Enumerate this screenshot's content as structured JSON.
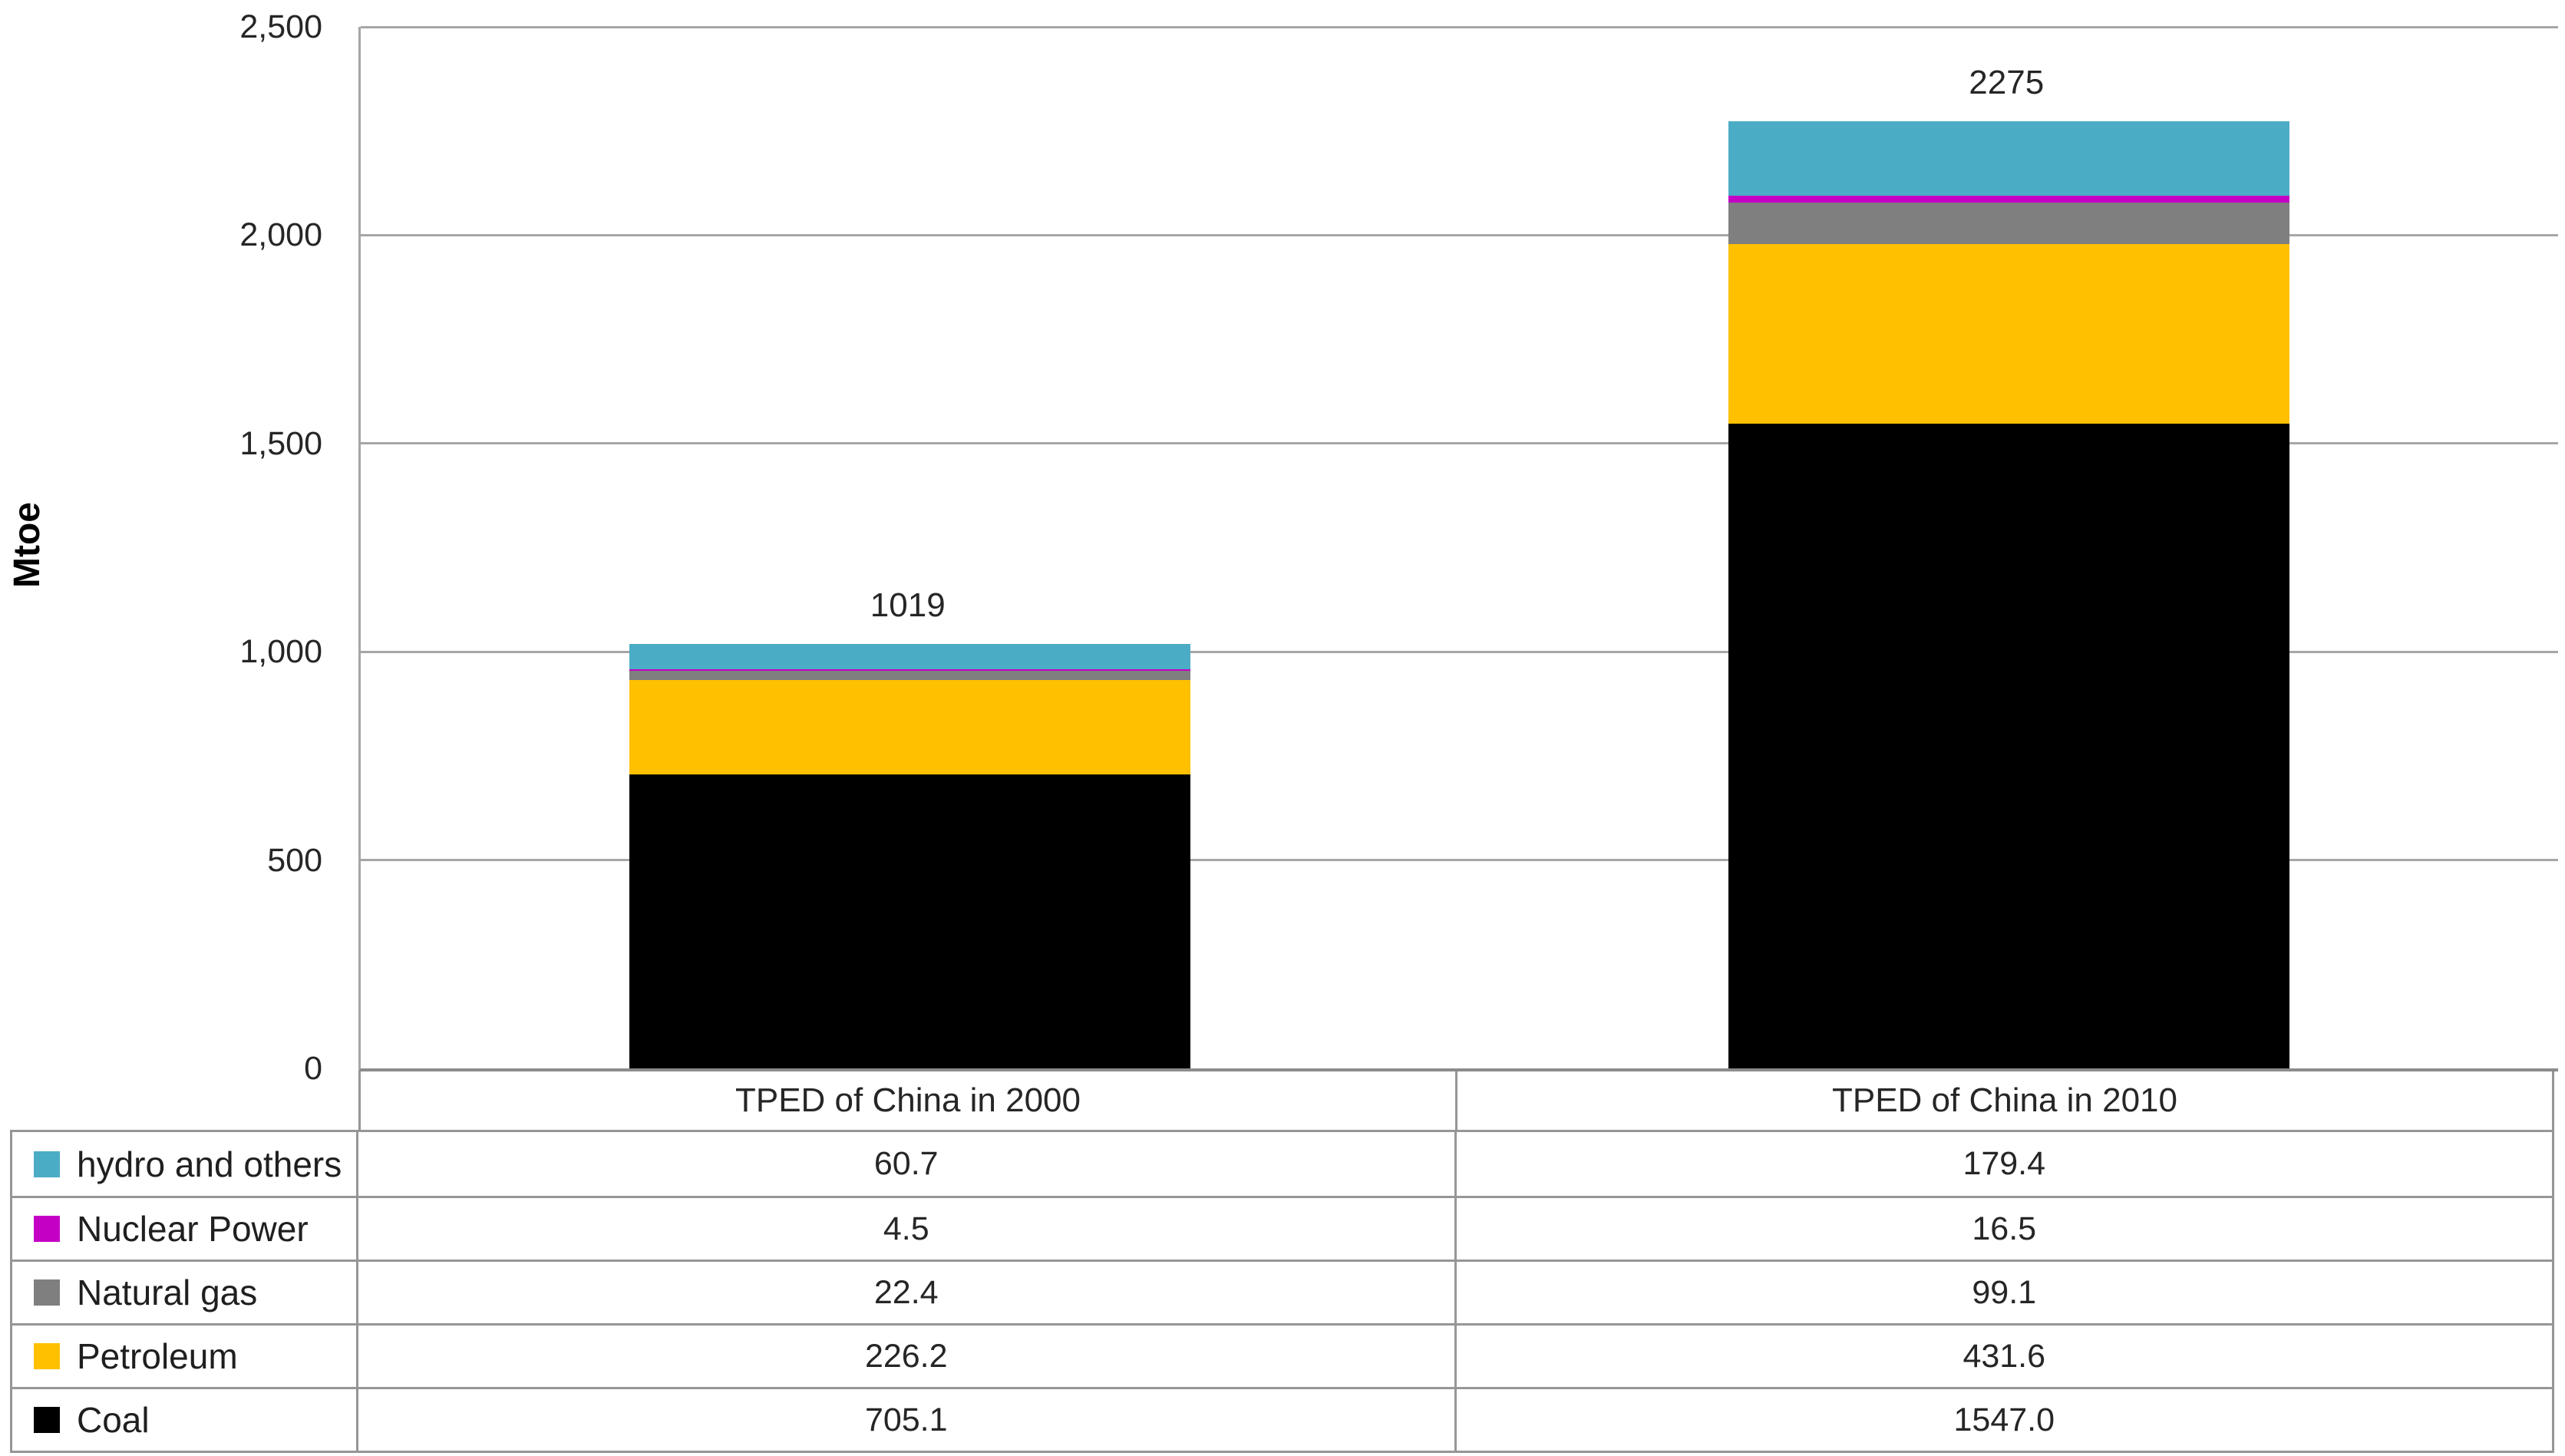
{
  "chart_data": {
    "type": "bar",
    "stacked": true,
    "title": "",
    "ylabel": "Mtoe",
    "xlabel": "",
    "grid": true,
    "legend_position": "table-left",
    "categories": [
      "TPED of China in 2000",
      "TPED of China in 2010"
    ],
    "series": [
      {
        "name": "Coal",
        "color": "#000000",
        "values": [
          705.1,
          1547.0
        ]
      },
      {
        "name": "Petroleum",
        "color": "#FFC000",
        "values": [
          226.2,
          431.6
        ]
      },
      {
        "name": "Natural gas",
        "color": "#7F7F7F",
        "values": [
          22.4,
          99.1
        ]
      },
      {
        "name": "Nuclear Power",
        "color": "#C400C4",
        "values": [
          4.5,
          16.5
        ]
      },
      {
        "name": "hydro and others",
        "color": "#4BACC6",
        "values": [
          60.7,
          179.4
        ]
      }
    ],
    "bar_total_labels": [
      "1019",
      "2275"
    ],
    "y_axis": {
      "min": 0,
      "max": 2500,
      "step": 500,
      "tick_labels": [
        "0",
        "500",
        "1,000",
        "1,500",
        "2,000",
        "2,500"
      ]
    }
  },
  "data_table": {
    "rows": [
      {
        "label": "hydro and others",
        "swatch_color": "#4BACC6",
        "values": [
          "60.7",
          "179.4"
        ]
      },
      {
        "label": "Nuclear Power",
        "swatch_color": "#C400C4",
        "values": [
          "4.5",
          "16.5"
        ]
      },
      {
        "label": "Natural gas",
        "swatch_color": "#7F7F7F",
        "values": [
          "22.4",
          "99.1"
        ]
      },
      {
        "label": "Petroleum",
        "swatch_color": "#FFC000",
        "values": [
          "226.2",
          "431.6"
        ]
      },
      {
        "label": "Coal",
        "swatch_color": "#000000",
        "values": [
          "705.1",
          "1547.0"
        ]
      }
    ]
  }
}
